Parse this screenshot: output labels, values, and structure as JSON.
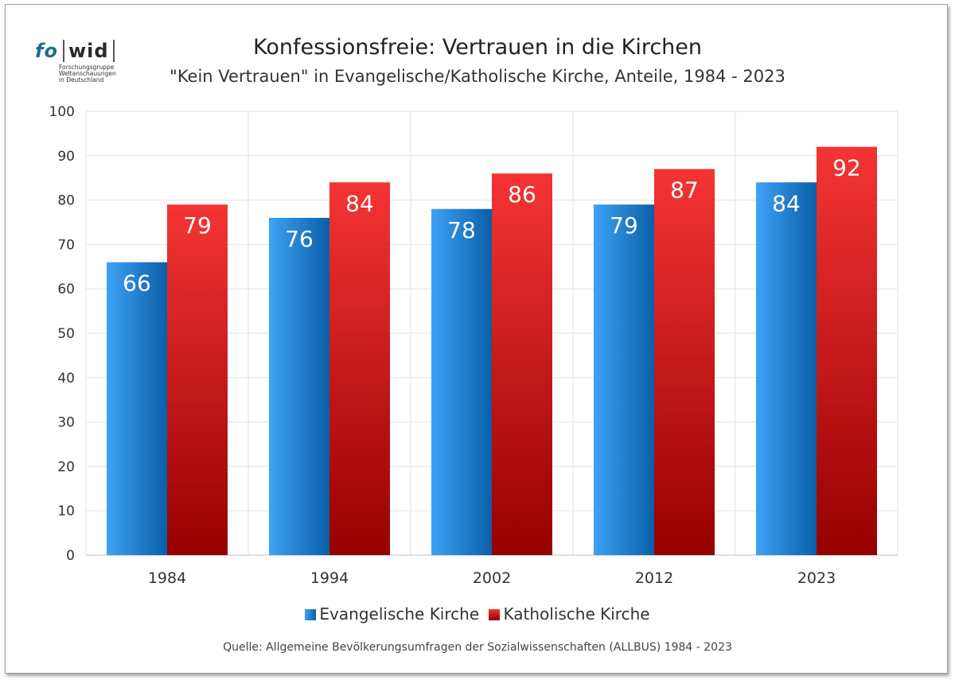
{
  "logo": {
    "part_a": "fo",
    "part_b": "wid",
    "line1": "Forschungsgruppe",
    "line2": "Weltanschauungen",
    "line3": "in Deutschland"
  },
  "source": "Quelle: Allgemeine Bevölkerungsumfragen der Sozialwissenschaften (ALLBUS) 1984 - 2023",
  "colors": {
    "evangelisch_light": "#3ea2f5",
    "evangelisch_dark": "#0a5fa8",
    "katholisch_light": "#f53434",
    "katholisch_dark": "#960000",
    "grid": "#e2e2e2"
  },
  "chart_data": {
    "type": "bar",
    "title": "Konfessionsfreie: Vertrauen in die Kirchen",
    "subtitle": "\"Kein Vertrauen\" in Evangelische/Katholische Kirche, Anteile, 1984 - 2023",
    "categories": [
      "1984",
      "1994",
      "2002",
      "2012",
      "2023"
    ],
    "series": [
      {
        "name": "Evangelische Kirche",
        "values": [
          66,
          76,
          78,
          79,
          84
        ]
      },
      {
        "name": "Katholische Kirche",
        "values": [
          79,
          84,
          86,
          87,
          92
        ]
      }
    ],
    "ylim": [
      0,
      100
    ],
    "yticks": [
      0,
      10,
      20,
      30,
      40,
      50,
      60,
      70,
      80,
      90,
      100
    ],
    "grid": true,
    "legend": "bottom"
  }
}
